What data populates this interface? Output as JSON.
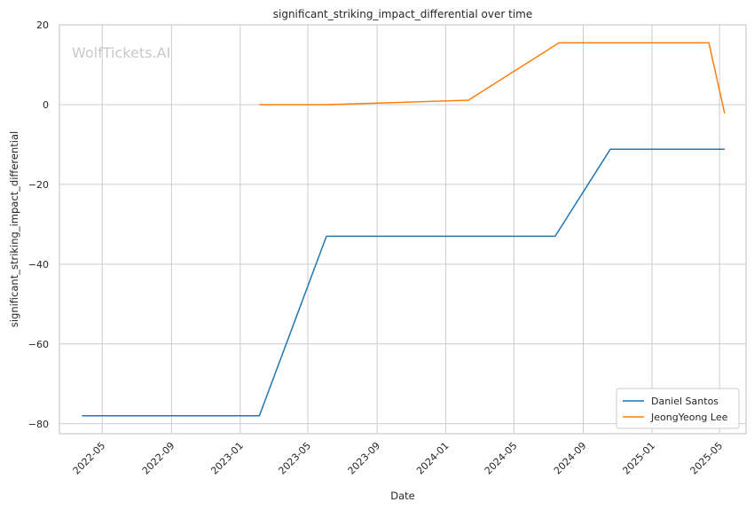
{
  "chart_data": {
    "type": "line",
    "title": "significant_striking_impact_differential over time",
    "xlabel": "Date",
    "ylabel": "significant_striking_impact_differential",
    "watermark": "WolfTickets.AI",
    "x_ticks": [
      "2022-05",
      "2022-09",
      "2023-01",
      "2023-05",
      "2023-09",
      "2024-01",
      "2024-05",
      "2024-09",
      "2025-01",
      "2025-05"
    ],
    "y_ticks": [
      20,
      0,
      -20,
      -40,
      -60,
      -80
    ],
    "ylim": [
      -82.5,
      20
    ],
    "xlim": [
      "2022-02-14",
      "2025-06-17"
    ],
    "grid": true,
    "legend_position": "bottom-right",
    "series": [
      {
        "name": "Daniel Santos",
        "color": "#1f77b4",
        "points": [
          {
            "x": "2022-03-26",
            "y": -78
          },
          {
            "x": "2023-02-04",
            "y": -78
          },
          {
            "x": "2023-06-03",
            "y": -33
          },
          {
            "x": "2024-07-13",
            "y": -33
          },
          {
            "x": "2024-10-19",
            "y": -11.2
          },
          {
            "x": "2025-05-10",
            "y": -11.2
          }
        ]
      },
      {
        "name": "JeongYeong Lee",
        "color": "#ff7f0e",
        "points": [
          {
            "x": "2023-02-04",
            "y": 0
          },
          {
            "x": "2023-06-03",
            "y": 0
          },
          {
            "x": "2024-02-10",
            "y": 1.1
          },
          {
            "x": "2024-07-20",
            "y": 15.5
          },
          {
            "x": "2025-04-12",
            "y": 15.5
          },
          {
            "x": "2025-05-10",
            "y": -2.2
          }
        ]
      }
    ]
  }
}
